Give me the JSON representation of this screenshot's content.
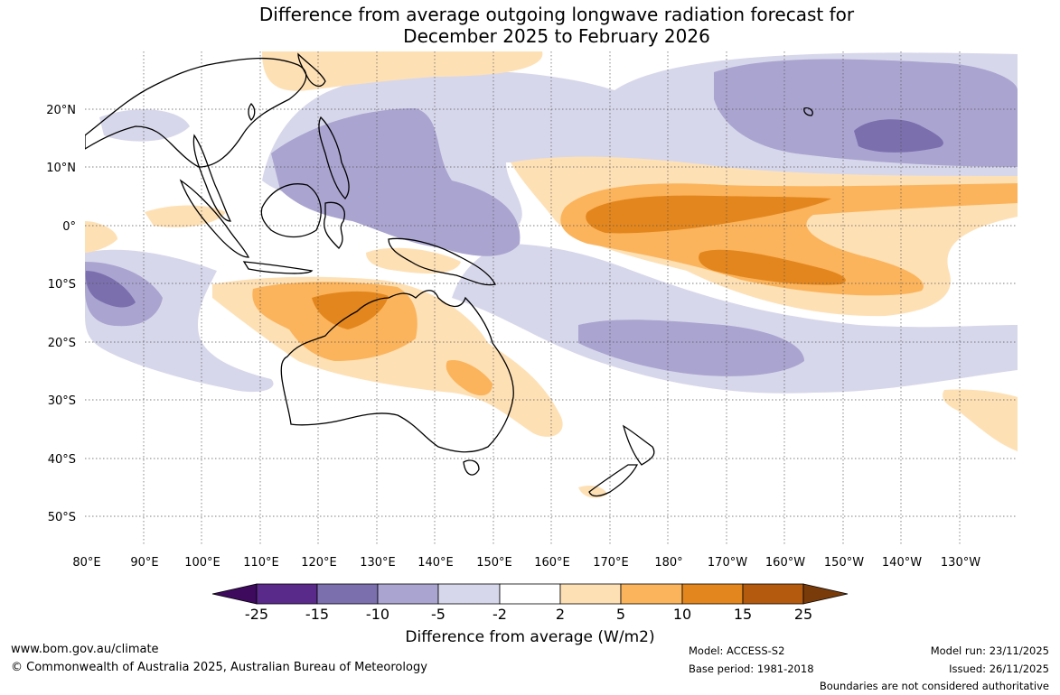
{
  "title": {
    "line1": "Difference from average outgoing longwave radiation forecast for",
    "line2": "December 2025 to February 2026"
  },
  "map": {
    "lon_labels": [
      "80°E",
      "90°E",
      "100°E",
      "110°E",
      "120°E",
      "130°E",
      "140°E",
      "150°E",
      "160°E",
      "170°E",
      "180°",
      "170°W",
      "160°W",
      "150°W",
      "140°W",
      "130°W"
    ],
    "lat_labels": [
      "20°N",
      "10°N",
      "0°",
      "10°S",
      "20°S",
      "30°S",
      "40°S",
      "50°S"
    ]
  },
  "colorbar": {
    "colors": [
      "#3d0a5e",
      "#5a2a8a",
      "#7b6fad",
      "#aaa4d0",
      "#d7d7eb",
      "#ffffff",
      "#fee0b5",
      "#fbb45c",
      "#e3861d",
      "#b45a0e",
      "#7a3b0a"
    ],
    "labels": [
      "-25",
      "-15",
      "-10",
      "-5",
      "-2",
      "2",
      "5",
      "10",
      "15",
      "25"
    ],
    "title": "Difference from average (W/m2)"
  },
  "footer": {
    "url": "www.bom.gov.au/climate",
    "copyright": "© Commonwealth of Australia 2025, Australian Bureau of Meteorology",
    "model": "Model: ACCESS-S2",
    "base_period": "Base period: 1981-2018",
    "model_run": "Model run: 23/11/2025",
    "issued": "Issued: 26/11/2025",
    "disclaimer": "Boundaries are not considered authoritative"
  }
}
